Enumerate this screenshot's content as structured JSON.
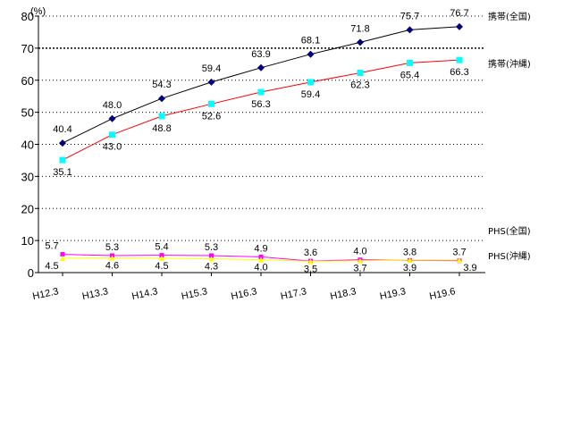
{
  "chart_data": {
    "type": "line",
    "title": "",
    "xlabel": "",
    "ylabel": "(%)",
    "ylim": [
      0,
      80
    ],
    "yticks": [
      0,
      10,
      20,
      30,
      40,
      50,
      60,
      70,
      80
    ],
    "grid": true,
    "categories": [
      "H12.3",
      "H13.3",
      "H14.3",
      "H15.3",
      "H16.3",
      "H17.3",
      "H18.3",
      "H19.3",
      "H19.6"
    ],
    "series": [
      {
        "name": "携帯(全国)",
        "color": "#000000",
        "marker_color": "#000080",
        "marker": "diamond",
        "values": [
          40.4,
          48.0,
          54.3,
          59.4,
          63.9,
          68.1,
          71.8,
          75.7,
          76.7
        ],
        "labels": [
          "40.4",
          "48.0",
          "54.3",
          "59.4",
          "63.9",
          "68.1",
          "71.8",
          "75.7",
          "76.7"
        ]
      },
      {
        "name": "携帯(沖縄)",
        "color": "#ff0000",
        "marker_color": "#00ffff",
        "marker": "square",
        "values": [
          35.1,
          43.0,
          48.8,
          52.6,
          56.3,
          59.4,
          62.3,
          65.4,
          66.3
        ],
        "labels": [
          "35.1",
          "43.0",
          "48.8",
          "52.6",
          "56.3",
          "59.4",
          "62.3",
          "65.4",
          "66.3"
        ]
      },
      {
        "name": "PHS(全国)",
        "color": "#ff00ff",
        "marker_color": "#ff00ff",
        "marker": "square",
        "values": [
          5.7,
          5.3,
          5.4,
          5.3,
          4.9,
          3.6,
          4.0,
          3.8,
          3.7
        ],
        "labels": [
          "5.7",
          "5.3",
          "5.4",
          "5.3",
          "4.9",
          "3.6",
          "4.0",
          "3.8",
          "3.7"
        ]
      },
      {
        "name": "PHS(沖縄)",
        "color": "#ffff00",
        "marker_color": "#ffff00",
        "marker": "triangle",
        "values": [
          4.5,
          4.6,
          4.5,
          4.3,
          4.0,
          3.5,
          3.7,
          3.9,
          3.9
        ],
        "labels": [
          "4.5",
          "4.6",
          "4.5",
          "4.3",
          "4.0",
          "3.5",
          "3.7",
          "3.9",
          "3.9"
        ]
      }
    ]
  }
}
